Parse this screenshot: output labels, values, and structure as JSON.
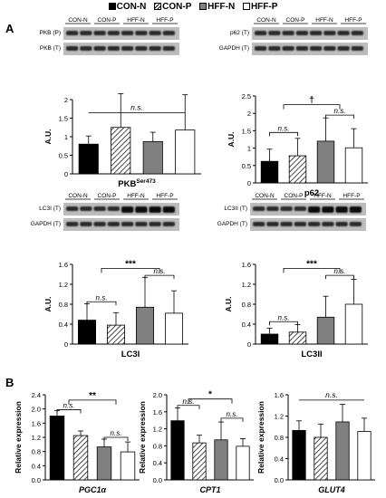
{
  "legend": [
    {
      "label": "CON-N",
      "color": "#000000",
      "pattern": "solid"
    },
    {
      "label": "CON-P",
      "color": "#000000",
      "pattern": "hatch"
    },
    {
      "label": "HFF-N",
      "color": "#808080",
      "pattern": "solid"
    },
    {
      "label": "HFF-P",
      "color": "#ffffff",
      "pattern": "solid"
    }
  ],
  "panel_labels": {
    "a": "A",
    "b": "B"
  },
  "blots": [
    {
      "id": "pkb",
      "header": [
        "CON-N",
        "CON-P",
        "HFF-N",
        "HFF-P"
      ],
      "rows": [
        "PKB (P)",
        "PKB (T)"
      ]
    },
    {
      "id": "p62",
      "header": [
        "CON-N",
        "CON-P",
        "HFF-N",
        "HFF-P"
      ],
      "rows": [
        "p62 (T)",
        "GAPDH (T)"
      ]
    },
    {
      "id": "lc3i",
      "header": [
        "CON-N",
        "CON-P",
        "HFF-N",
        "HFF-P"
      ],
      "rows": [
        "LC3I (T)",
        "GAPDH (T)"
      ]
    },
    {
      "id": "lc3ii",
      "header": [
        "CON-N",
        "CON-P",
        "HFF-N",
        "HFF-P"
      ],
      "rows": [
        "LC3II (T)",
        "GAPDH (T)"
      ]
    }
  ],
  "chart_data": [
    {
      "id": "pkb",
      "type": "bar",
      "title_main": "PKB",
      "title_sup": "Ser473",
      "ylabel": "A.U.",
      "ylim": [
        0,
        2
      ],
      "yticks": [
        "0",
        "0.5",
        "1",
        "1.5",
        "2"
      ],
      "categories": [
        "CON-N",
        "CON-P",
        "HFF-N",
        "HFF-P"
      ],
      "values": [
        0.8,
        1.25,
        0.87,
        1.18
      ],
      "errors": [
        0.22,
        1.25,
        0.25,
        0.95
      ],
      "annotations": [
        {
          "text": "n.s.",
          "kind": "line",
          "y": 1.65
        }
      ]
    },
    {
      "id": "p62",
      "type": "bar",
      "title_main": "p62",
      "title_sup": "",
      "ylabel": "A.U.",
      "ylim": [
        0,
        2.5
      ],
      "yticks": [
        "0",
        "0.5",
        "1",
        "1.5",
        "2",
        "2.5"
      ],
      "categories": [
        "CON-N",
        "CON-P",
        "HFF-N",
        "HFF-P"
      ],
      "values": [
        0.62,
        0.78,
        1.2,
        1.01
      ],
      "errors": [
        0.35,
        0.5,
        0.67,
        0.55
      ],
      "annotations": [
        {
          "text": "n.s.",
          "kind": "bracket",
          "from": 0,
          "to": 1,
          "y": 1.45
        },
        {
          "text": "n.s.",
          "kind": "bracket",
          "from": 2,
          "to": 3,
          "y": 1.95
        },
        {
          "text": "†",
          "kind": "group",
          "y": 2.25
        }
      ]
    },
    {
      "id": "lc3i",
      "type": "bar",
      "title_main": "LC3I",
      "title_sup": "",
      "ylabel": "A.U.",
      "ylim": [
        0,
        1.6
      ],
      "yticks": [
        "0",
        "0.4",
        "0.8",
        "1.2",
        "1.6"
      ],
      "categories": [
        "CON-N",
        "CON-P",
        "HFF-N",
        "HFF-P"
      ],
      "values": [
        0.48,
        0.38,
        0.74,
        0.62
      ],
      "errors": [
        0.33,
        0.25,
        0.6,
        0.45
      ],
      "annotations": [
        {
          "text": "n.s.",
          "kind": "bracket",
          "from": 0,
          "to": 1,
          "y": 0.85
        },
        {
          "text": "n.s.",
          "kind": "bracket",
          "from": 2,
          "to": 3,
          "y": 1.38
        },
        {
          "text": "***",
          "kind": "group",
          "y": 1.52
        }
      ]
    },
    {
      "id": "lc3ii",
      "type": "bar",
      "title_main": "LC3II",
      "title_sup": "",
      "ylabel": "A.U.",
      "ylim": [
        0,
        1.6
      ],
      "yticks": [
        "0",
        "0.4",
        "0.8",
        "1.2",
        "1.6"
      ],
      "categories": [
        "CON-N",
        "CON-P",
        "HFF-N",
        "HFF-P"
      ],
      "values": [
        0.2,
        0.24,
        0.54,
        0.8
      ],
      "errors": [
        0.12,
        0.15,
        0.42,
        0.5
      ],
      "annotations": [
        {
          "text": "n.s.",
          "kind": "bracket",
          "from": 0,
          "to": 1,
          "y": 0.45
        },
        {
          "text": "n.s.",
          "kind": "bracket",
          "from": 2,
          "to": 3,
          "y": 1.38
        },
        {
          "text": "***",
          "kind": "group",
          "y": 1.52
        }
      ]
    },
    {
      "id": "pgc1a",
      "type": "bar",
      "xlabel": "PGC1α",
      "ylabel": "Relative expression",
      "ylim": [
        0,
        2.4
      ],
      "yticks": [
        "0.0",
        "0.4",
        "0.8",
        "1.2",
        "1.6",
        "2.0",
        "2.4"
      ],
      "categories": [
        "CON-N",
        "CON-P",
        "HFF-N",
        "HFF-P"
      ],
      "values": [
        1.8,
        1.25,
        0.93,
        0.79
      ],
      "errors": [
        0.15,
        0.13,
        0.22,
        0.28
      ],
      "annotations": [
        {
          "text": "n.s.",
          "kind": "bracket",
          "from": 0,
          "to": 1,
          "y": 1.98
        },
        {
          "text": "n.s.",
          "kind": "bracket",
          "from": 2,
          "to": 3,
          "y": 1.2
        },
        {
          "text": "**",
          "kind": "group",
          "y": 2.25
        }
      ]
    },
    {
      "id": "cpt1",
      "type": "bar",
      "xlabel": "CPT1",
      "ylabel": "Relative expression",
      "ylim": [
        0,
        2.0
      ],
      "yticks": [
        "0.0",
        "0.4",
        "0.8",
        "1.2",
        "1.6",
        "2.0"
      ],
      "categories": [
        "CON-N",
        "CON-P",
        "HFF-N",
        "HFF-P"
      ],
      "values": [
        1.39,
        0.87,
        0.94,
        0.79
      ],
      "errors": [
        0.3,
        0.18,
        0.42,
        0.18
      ],
      "annotations": [
        {
          "text": "n.s.",
          "kind": "bracket",
          "from": 0,
          "to": 1,
          "y": 1.75
        },
        {
          "text": "n.s.",
          "kind": "bracket",
          "from": 2,
          "to": 3,
          "y": 1.45
        },
        {
          "text": "*",
          "kind": "group",
          "y": 1.9
        }
      ]
    },
    {
      "id": "glut4",
      "type": "bar",
      "xlabel": "GLUT4",
      "ylabel": "Relative expression",
      "ylim": [
        0,
        1.6
      ],
      "yticks": [
        "0.0",
        "0.4",
        "0.8",
        "1.2",
        "1.6"
      ],
      "categories": [
        "CON-N",
        "CON-P",
        "HFF-N",
        "HFF-P"
      ],
      "values": [
        0.93,
        0.8,
        1.09,
        0.91
      ],
      "errors": [
        0.18,
        0.25,
        0.33,
        0.25
      ],
      "annotations": [
        {
          "text": "n.s.",
          "kind": "line",
          "y": 1.5
        }
      ]
    }
  ]
}
